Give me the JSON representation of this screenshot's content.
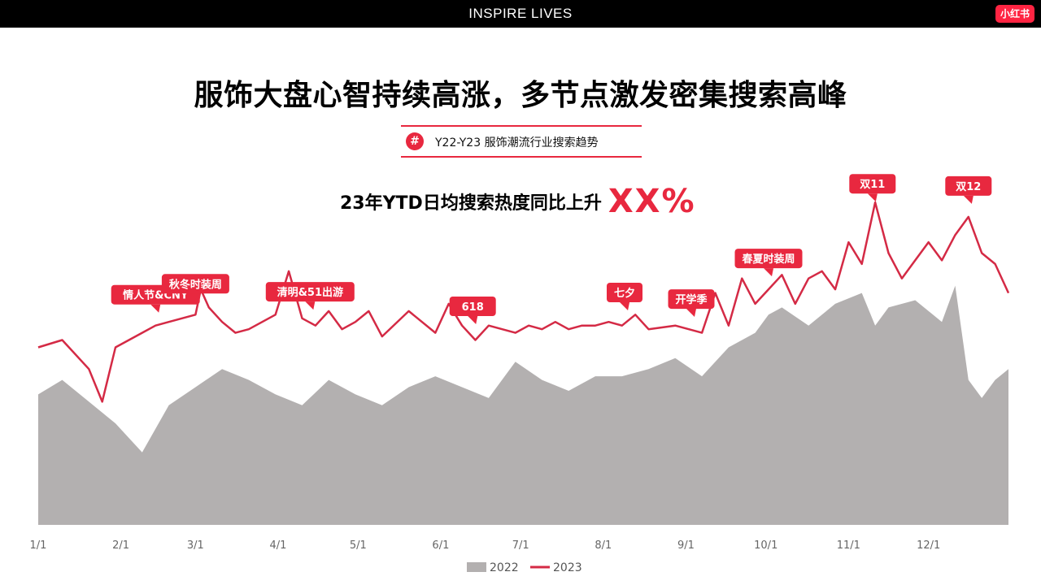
{
  "header": {
    "title": "INSPIRE LIVES",
    "logo": "小红书"
  },
  "headline": "服饰大盘心智持续高涨，多节点激发密集搜索高峰",
  "subtitle": {
    "icon": "#",
    "text": "Y22-Y23 服饰潮流行业搜索趋势"
  },
  "ytd": {
    "text": "23年YTD日均搜索热度同比上升",
    "value": "XX%"
  },
  "colors": {
    "accent": "#e8283f",
    "area_2022": "#b3b0b0",
    "line_2023": "#d42a45"
  },
  "chart_data": {
    "type": "area",
    "x_ticks": [
      "1/1",
      "2/1",
      "3/1",
      "4/1",
      "5/1",
      "6/1",
      "7/1",
      "8/1",
      "9/1",
      "10/1",
      "11/1",
      "12/1"
    ],
    "xlabel": "",
    "ylabel": "",
    "grid": false,
    "legend": "bottom-center",
    "series": [
      {
        "name": "2022",
        "style": "area",
        "x": [
          1,
          10,
          20,
          30,
          40,
          50,
          60,
          70,
          80,
          90,
          100,
          110,
          120,
          130,
          140,
          150,
          160,
          170,
          180,
          190,
          200,
          210,
          220,
          230,
          240,
          250,
          260,
          270,
          275,
          280,
          290,
          300,
          310,
          315,
          320,
          330,
          340,
          345,
          350,
          355,
          360,
          365
        ],
        "values": [
          36,
          40,
          34,
          28,
          20,
          33,
          38,
          43,
          40,
          36,
          33,
          40,
          36,
          33,
          38,
          41,
          38,
          35,
          45,
          40,
          37,
          41,
          41,
          43,
          46,
          41,
          49,
          53,
          58,
          60,
          55,
          61,
          64,
          55,
          60,
          62,
          56,
          66,
          40,
          35,
          40,
          43
        ]
      },
      {
        "name": "2023",
        "style": "line",
        "x": [
          1,
          10,
          20,
          25,
          30,
          40,
          45,
          50,
          60,
          62,
          65,
          70,
          75,
          80,
          90,
          95,
          100,
          105,
          110,
          115,
          120,
          125,
          130,
          140,
          150,
          155,
          160,
          165,
          170,
          180,
          185,
          190,
          195,
          200,
          205,
          210,
          215,
          220,
          225,
          230,
          240,
          250,
          255,
          260,
          265,
          270,
          275,
          280,
          285,
          290,
          295,
          300,
          305,
          310,
          315,
          320,
          325,
          330,
          335,
          340,
          345,
          350,
          355,
          360,
          365
        ],
        "values": [
          49,
          51,
          43,
          34,
          49,
          53,
          55,
          56,
          58,
          65,
          60,
          56,
          53,
          54,
          58,
          70,
          57,
          55,
          59,
          54,
          56,
          59,
          52,
          59,
          53,
          61,
          55,
          51,
          55,
          53,
          55,
          54,
          56,
          54,
          55,
          55,
          56,
          55,
          58,
          54,
          55,
          53,
          64,
          55,
          68,
          61,
          65,
          69,
          61,
          68,
          70,
          65,
          78,
          72,
          89,
          75,
          68,
          73,
          78,
          73,
          80,
          85,
          75,
          72,
          64
        ]
      }
    ],
    "annotations": [
      {
        "label": "情人节&CNY",
        "x": 45
      },
      {
        "label": "秋冬时装周",
        "x": 60
      },
      {
        "label": "清明&51出游",
        "x": 103
      },
      {
        "label": "618",
        "x": 164
      },
      {
        "label": "七夕",
        "x": 221
      },
      {
        "label": "开学季",
        "x": 246
      },
      {
        "label": "春夏时装周",
        "x": 275
      },
      {
        "label": "双11",
        "x": 314
      },
      {
        "label": "双12",
        "x": 350
      }
    ]
  }
}
